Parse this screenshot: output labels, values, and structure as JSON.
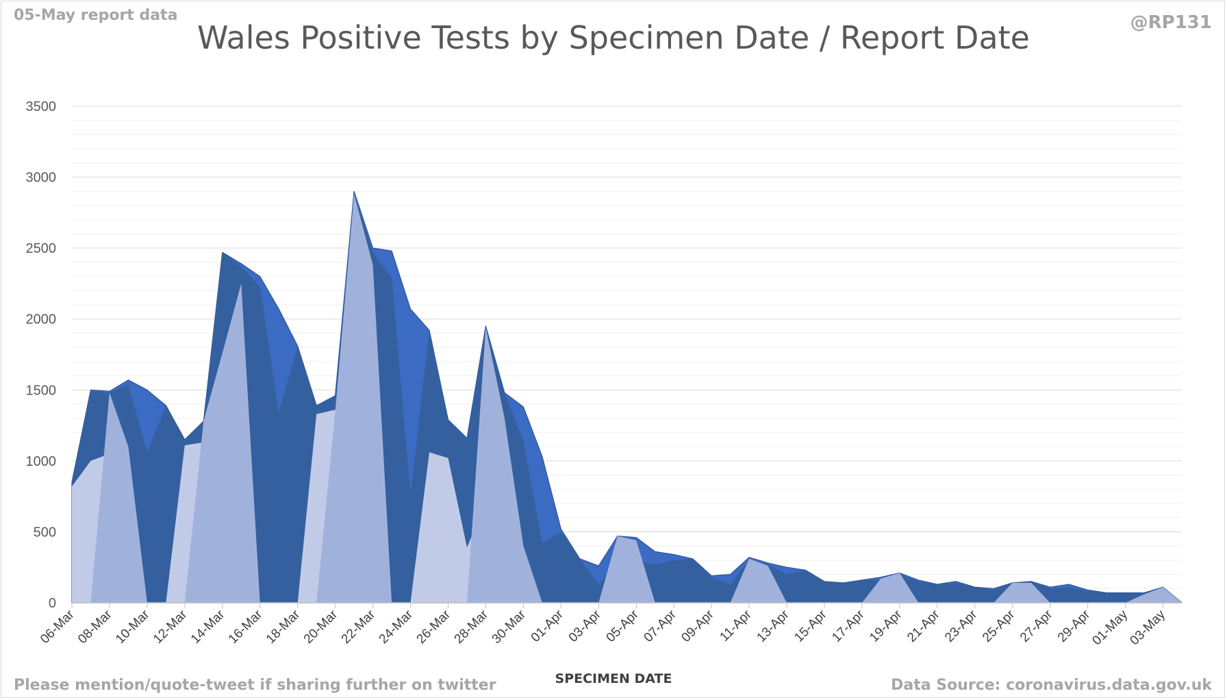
{
  "header": {
    "report_note": "05-May report data",
    "handle": "@RP131"
  },
  "footer": {
    "share_note": "Please mention/quote-tweet if sharing further on twitter",
    "source_note": "Data Source: coronavirus.data.gov.uk"
  },
  "colors": {
    "palette": [
      "#3c6bc4",
      "#35609f",
      "#6c8ccc",
      "#a0b2dc",
      "#c1cbe8",
      "#3e6fc0"
    ],
    "gridline": "#d9d9d9",
    "axis": "#bfbfbf"
  },
  "chart_data": {
    "type": "area",
    "title": "Wales Positive Tests by Specimen Date / Report Date",
    "xlabel": "SPECIMEN DATE",
    "ylabel": "",
    "ylim": [
      0,
      3500
    ],
    "yticks": [
      0,
      500,
      1000,
      1500,
      2000,
      2500,
      3000,
      3500
    ],
    "minor_gridlines": true,
    "legend": "none",
    "stacked": true,
    "x": [
      "06-Mar",
      "07-Mar",
      "08-Mar",
      "09-Mar",
      "10-Mar",
      "11-Mar",
      "12-Mar",
      "13-Mar",
      "14-Mar",
      "15-Mar",
      "16-Mar",
      "17-Mar",
      "18-Mar",
      "19-Mar",
      "20-Mar",
      "21-Mar",
      "22-Mar",
      "23-Mar",
      "24-Mar",
      "25-Mar",
      "26-Mar",
      "27-Mar",
      "28-Mar",
      "29-Mar",
      "30-Mar",
      "31-Mar",
      "01-Apr",
      "02-Apr",
      "03-Apr",
      "04-Apr",
      "05-Apr",
      "06-Apr",
      "07-Apr",
      "08-Apr",
      "09-Apr",
      "10-Apr",
      "11-Apr",
      "12-Apr",
      "13-Apr",
      "14-Apr",
      "15-Apr",
      "16-Apr",
      "17-Apr",
      "18-Apr",
      "19-Apr",
      "20-Apr",
      "21-Apr",
      "22-Apr",
      "23-Apr",
      "24-Apr",
      "25-Apr",
      "26-Apr",
      "27-Apr",
      "28-Apr",
      "29-Apr",
      "30-Apr",
      "01-May",
      "02-May",
      "03-May",
      "04-May"
    ],
    "xticks": [
      "06-Mar",
      "08-Mar",
      "10-Mar",
      "12-Mar",
      "14-Mar",
      "16-Mar",
      "18-Mar",
      "20-Mar",
      "22-Mar",
      "24-Mar",
      "26-Mar",
      "28-Mar",
      "30-Mar",
      "01-Apr",
      "03-Apr",
      "05-Apr",
      "07-Apr",
      "09-Apr",
      "11-Apr",
      "13-Apr",
      "15-Apr",
      "17-Apr",
      "19-Apr",
      "21-Apr",
      "23-Apr",
      "25-Apr",
      "27-Apr",
      "29-Apr",
      "01-May",
      "03-May"
    ],
    "totals": [
      850,
      1500,
      1490,
      1570,
      1500,
      1390,
      1150,
      1280,
      2470,
      2390,
      2300,
      2070,
      1810,
      1390,
      1460,
      2900,
      2500,
      2480,
      2070,
      1920,
      1290,
      1160,
      1950,
      1480,
      1380,
      1030,
      520,
      310,
      260,
      470,
      460,
      360,
      340,
      310,
      190,
      200,
      320,
      280,
      250,
      230,
      150,
      140,
      160,
      180,
      210,
      160,
      130,
      150,
      110,
      100,
      140,
      150,
      110,
      130,
      90,
      70,
      70,
      70,
      110,
      0
    ],
    "layer_cuts": [
      [
        0,
        0,
        1480,
        1100,
        0,
        0,
        0,
        1280,
        1760,
        2250,
        0,
        0,
        0,
        0,
        1350,
        2880,
        2380,
        0,
        0,
        0,
        0,
        0,
        1940,
        1300,
        400,
        0,
        0,
        0,
        0,
        470,
        440,
        0,
        0,
        0,
        0,
        0,
        310,
        260,
        0,
        0,
        0,
        0,
        0,
        170,
        210,
        0,
        0,
        0,
        0,
        0,
        140,
        140,
        0,
        0,
        0,
        0,
        0,
        60,
        110,
        0
      ],
      [
        0,
        0,
        0,
        0,
        0,
        0,
        0,
        0,
        0,
        1500,
        0,
        0,
        0,
        0,
        0,
        0,
        950,
        0,
        0,
        0,
        0,
        0,
        0,
        270,
        0,
        0,
        0,
        0,
        0,
        0,
        240,
        0,
        0,
        0,
        0,
        0,
        0,
        0,
        0,
        0,
        0,
        0,
        0,
        0,
        30,
        0,
        0,
        0,
        0,
        0,
        0,
        60,
        0,
        0,
        0,
        0,
        0,
        0,
        0,
        0
      ],
      [
        820,
        1000,
        1050,
        0,
        0,
        0,
        1110,
        1130,
        1700,
        0,
        0,
        0,
        0,
        1330,
        1360,
        0,
        0,
        0,
        0,
        1060,
        1020,
        390,
        700,
        0,
        0,
        0,
        0,
        0,
        0,
        0,
        0,
        0,
        0,
        0,
        0,
        0,
        0,
        0,
        0,
        0,
        0,
        0,
        0,
        0,
        0,
        0,
        0,
        0,
        0,
        0,
        0,
        0,
        0,
        0,
        0,
        0,
        0,
        0,
        0,
        0
      ],
      [
        850,
        1490,
        1480,
        1540,
        1060,
        1390,
        1150,
        1280,
        2470,
        2370,
        2230,
        1340,
        1810,
        1390,
        1460,
        2880,
        2470,
        2290,
        770,
        1920,
        1290,
        1160,
        1940,
        1480,
        1140,
        420,
        500,
        310,
        130,
        280,
        290,
        270,
        300,
        310,
        180,
        130,
        300,
        270,
        200,
        230,
        150,
        140,
        160,
        160,
        200,
        150,
        130,
        140,
        110,
        90,
        140,
        150,
        100,
        110,
        80,
        70,
        70,
        70,
        100,
        0
      ]
    ]
  }
}
